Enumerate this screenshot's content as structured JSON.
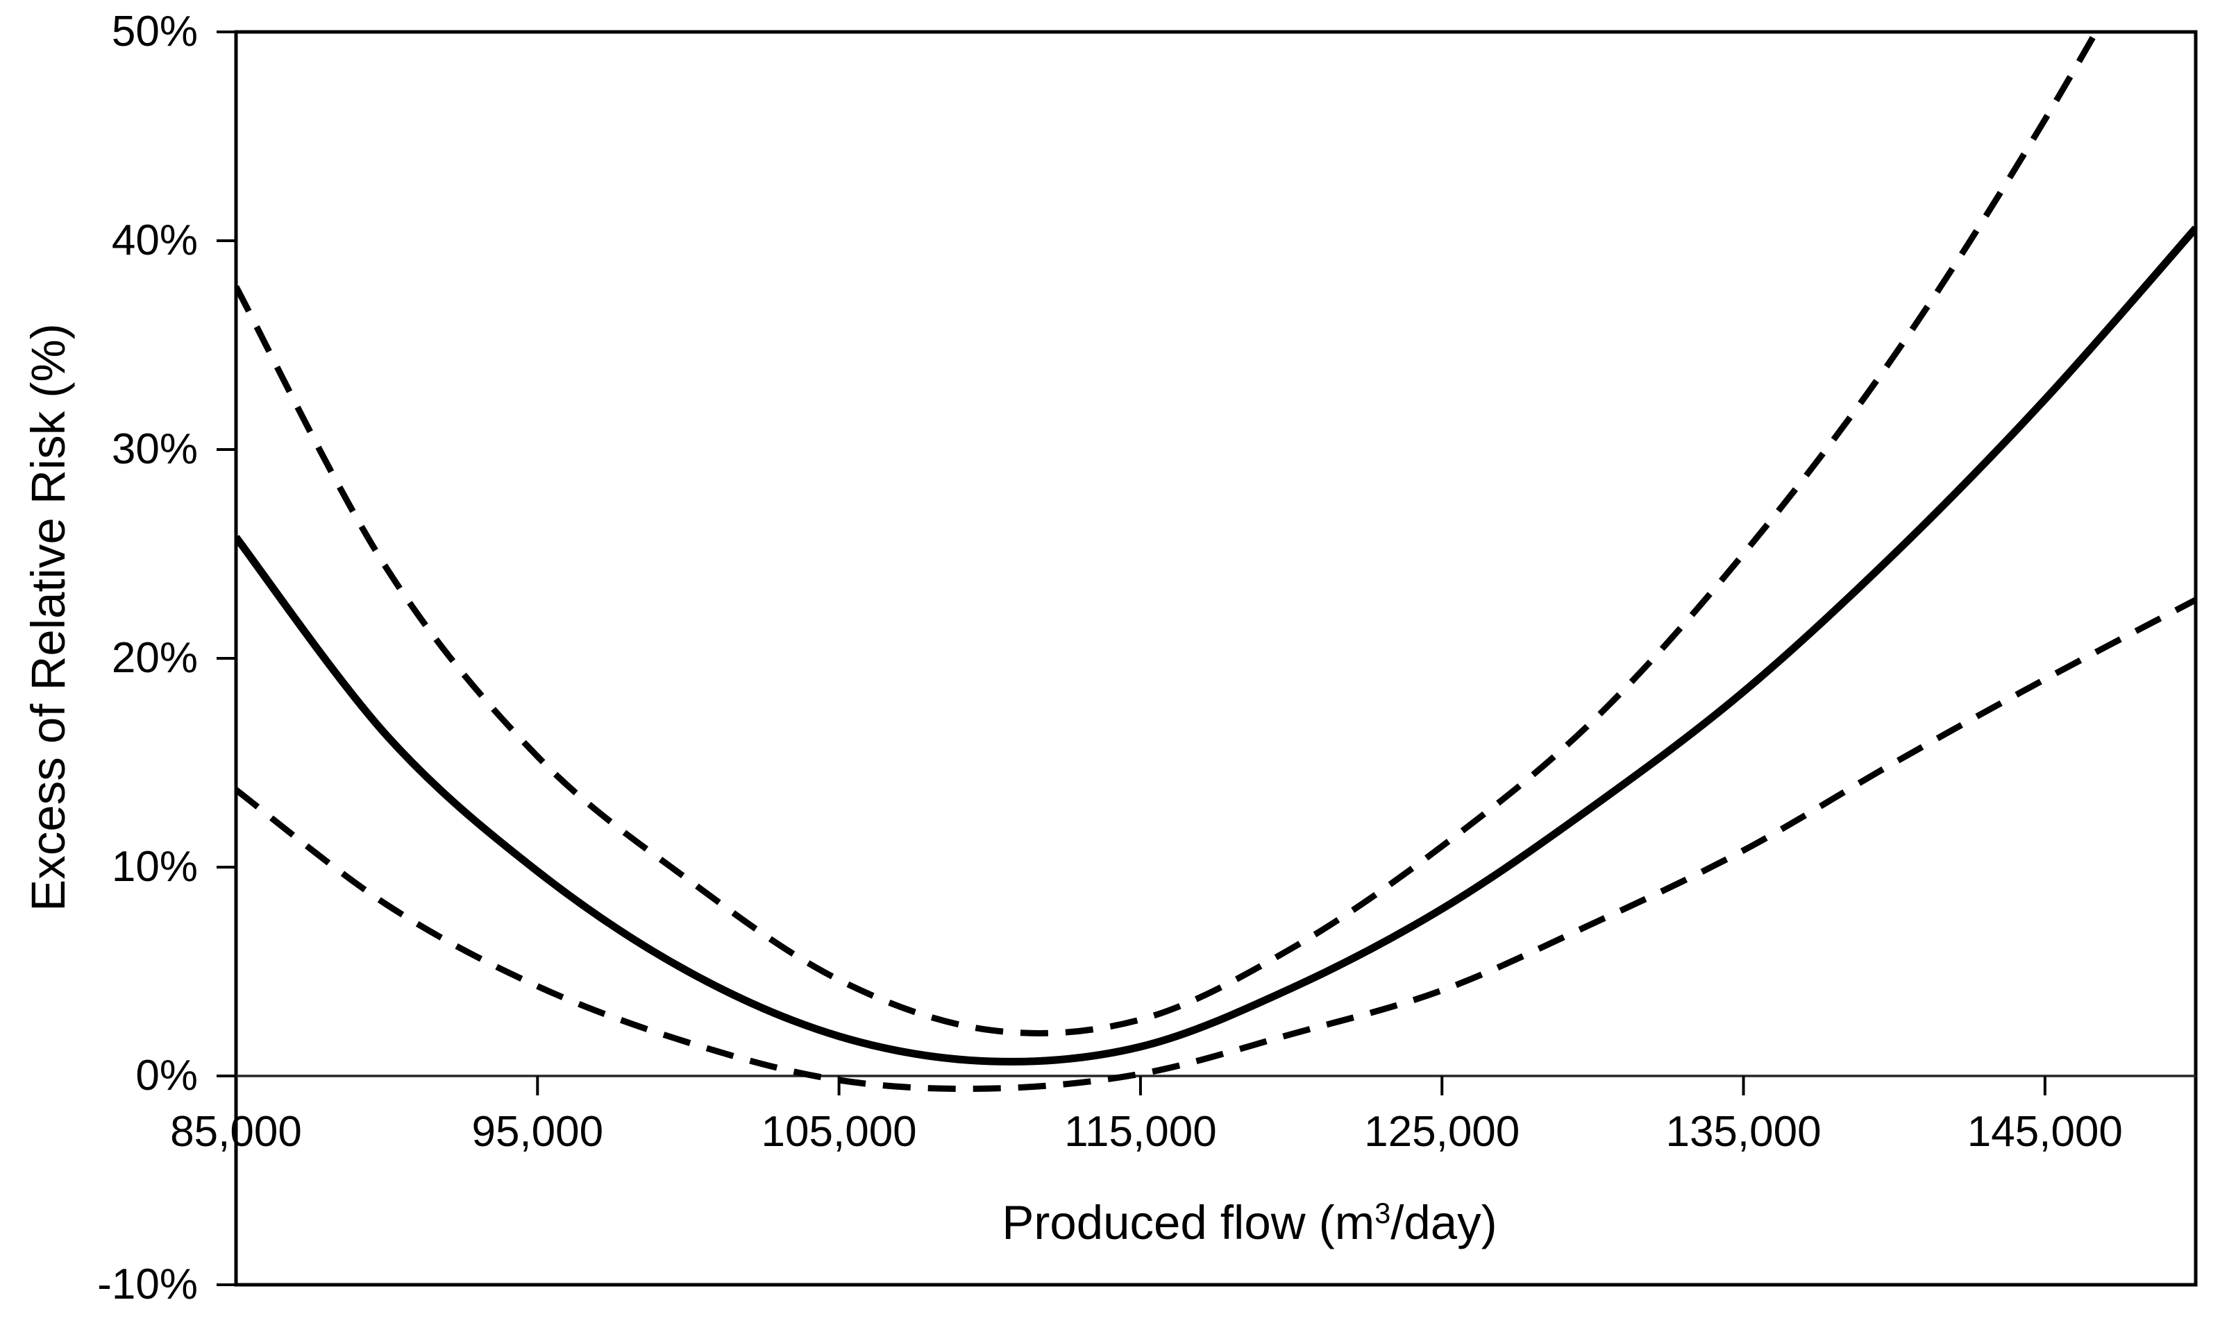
{
  "page": {
    "background": "#ffffff"
  },
  "colors": {
    "line": "#000000",
    "frame": "#000000",
    "zero_axis": "#262626",
    "text": "#000000"
  },
  "chart_data": {
    "type": "line",
    "title": "",
    "xlabel": "Produced flow (m³/day)",
    "xlabel_parts": {
      "prefix": "Produced flow (m",
      "superscript": "3",
      "suffix": "/day)"
    },
    "ylabel": "Excess of Relative Risk (%)",
    "xlim": [
      85000,
      150000
    ],
    "ylim_percent": [
      -10,
      50
    ],
    "grid": "off",
    "legend": "none",
    "x_ticks": [
      {
        "value": 85000,
        "label": "85,000"
      },
      {
        "value": 95000,
        "label": "95,000"
      },
      {
        "value": 105000,
        "label": "105,000"
      },
      {
        "value": 115000,
        "label": "115,000"
      },
      {
        "value": 125000,
        "label": "125,000"
      },
      {
        "value": 135000,
        "label": "135,000"
      },
      {
        "value": 145000,
        "label": "145,000"
      }
    ],
    "y_ticks": [
      {
        "value": 50,
        "label": "50%"
      },
      {
        "value": 40,
        "label": "40%"
      },
      {
        "value": 30,
        "label": "30%"
      },
      {
        "value": 20,
        "label": "20%"
      },
      {
        "value": 10,
        "label": "10%"
      },
      {
        "value": 0,
        "label": "0%"
      },
      {
        "value": -10,
        "label": "-10%"
      }
    ],
    "x": [
      85000,
      90000,
      95000,
      100000,
      105000,
      110000,
      115000,
      120000,
      125000,
      130000,
      135000,
      140000,
      145000,
      150000
    ],
    "series": [
      {
        "name": "solid-central-curve",
        "line_style": "solid",
        "color": "#000000",
        "y_percent": [
          25.8,
          16.3,
          9.8,
          5.0,
          1.9,
          0.7,
          1.4,
          4.2,
          8.0,
          12.9,
          18.4,
          25.0,
          32.4,
          40.6
        ]
      },
      {
        "name": "dashed-upper-curve",
        "line_style": "dashed",
        "color": "#000000",
        "y_percent": [
          37.8,
          24.3,
          15.3,
          9.4,
          4.6,
          2.2,
          2.7,
          6.1,
          11.0,
          17.0,
          25.0,
          34.5,
          45.8,
          58.5
        ]
      },
      {
        "name": "dashed-lower-curve",
        "line_style": "dashed",
        "color": "#000000",
        "y_percent": [
          13.7,
          8.2,
          4.3,
          1.6,
          -0.2,
          -0.6,
          0.1,
          2.0,
          4.1,
          7.3,
          10.8,
          15.0,
          19.0,
          22.8
        ]
      }
    ]
  }
}
